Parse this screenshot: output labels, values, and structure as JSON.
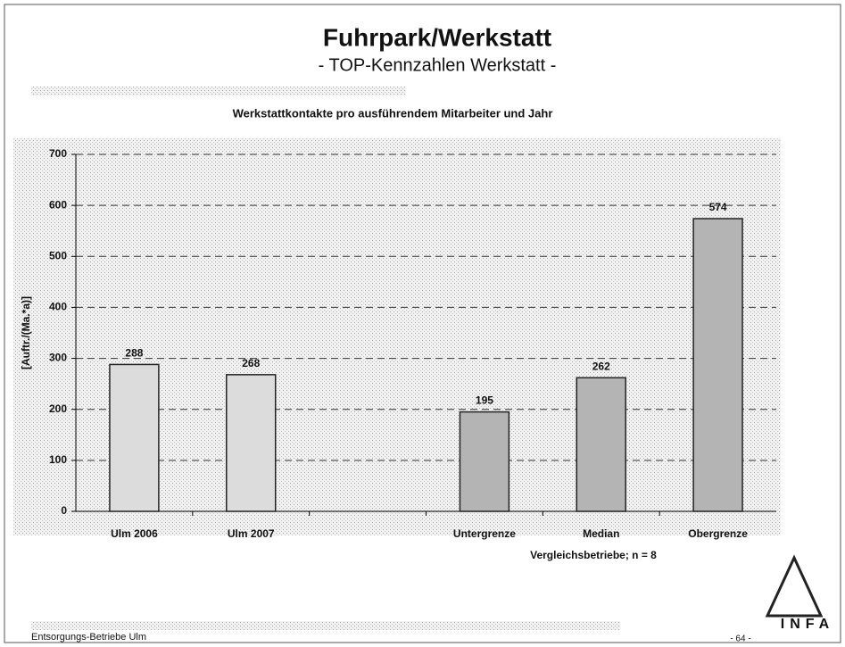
{
  "header": {
    "title": "Fuhrpark/Werkstatt",
    "subtitle": "- TOP-Kennzahlen Werkstatt -"
  },
  "chart_data": {
    "type": "bar",
    "title": "Werkstattkontakte pro ausführendem Mitarbeiter und Jahr",
    "y_label": "[Auftr./(Ma.*a)]",
    "group_label": "Vergleichsbetriebe; n = 8",
    "categories": [
      "Ulm 2006",
      "Ulm 2007",
      null,
      "Untergrenze",
      "Median",
      "Obergrenze"
    ],
    "values": [
      288,
      268,
      null,
      195,
      262,
      574
    ],
    "colors": [
      "#dcdcdc",
      "#dcdcdc",
      null,
      "#b4b4b4",
      "#b4b4b4",
      "#b4b4b4"
    ],
    "ylim": [
      0,
      700
    ],
    "yticks": [
      0,
      100,
      200,
      300,
      400,
      500,
      600,
      700
    ],
    "grid": true
  },
  "footer": {
    "left": "Entsorgungs-Betriebe Ulm",
    "page": "- 64 -"
  },
  "logo": "INFA"
}
